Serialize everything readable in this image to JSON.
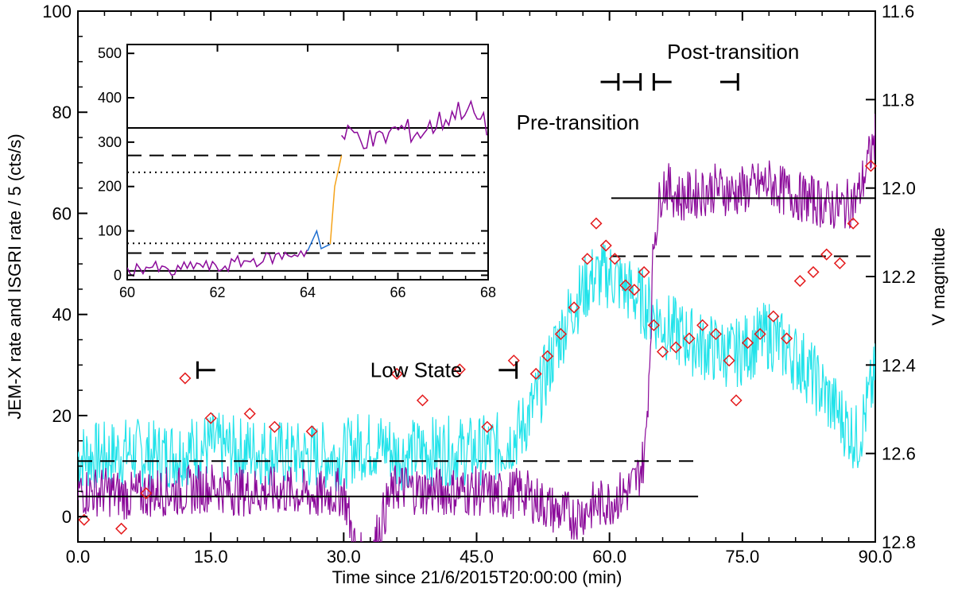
{
  "chart_data": {
    "type": "line",
    "xlabel": "Time since 21/6/2015T20:00:00 (min)",
    "ylabel_left": "JEM-X rate and ISGRI rate / 5 (cts/s)",
    "ylabel_right": "V magnitude",
    "xlim": [
      0,
      90
    ],
    "ylim_left": [
      -5,
      100
    ],
    "ylim_right": [
      12.8,
      11.6
    ],
    "x_ticks": [
      "0.0",
      "15.0",
      "30.0",
      "45.0",
      "60.0",
      "75.0",
      "90.0"
    ],
    "y_ticks_left": [
      "0",
      "20",
      "40",
      "60",
      "80",
      "100"
    ],
    "y_ticks_right": [
      "11.6",
      "11.8",
      "12.0",
      "12.2",
      "12.4",
      "12.6",
      "12.8"
    ],
    "colors": {
      "jemx": "#22e3ea",
      "isgri": "#8b0a9a",
      "optical": "#e41a1c",
      "transition_early": "#1f6fd0",
      "transition_late": "#f5a31a",
      "reference": "#000000"
    },
    "series": [
      {
        "key": "jemx",
        "x": [
          0,
          3,
          6,
          9,
          12,
          15,
          18,
          21,
          24,
          27,
          30,
          31.5,
          33,
          35,
          36,
          39,
          42,
          45,
          48,
          50,
          52,
          54,
          56,
          58,
          60,
          62,
          64,
          66,
          68,
          70,
          72,
          74,
          76,
          78,
          80,
          82,
          84,
          86,
          88,
          90
        ],
        "y": [
          12,
          12,
          13,
          12,
          13,
          14,
          13,
          13,
          12,
          12,
          12,
          14,
          14,
          14,
          12,
          13,
          13,
          13,
          14,
          17,
          24,
          34,
          42,
          47,
          48,
          45,
          42,
          38,
          36,
          34,
          33,
          32,
          34,
          36,
          33,
          30,
          25,
          20,
          15,
          28
        ]
      },
      {
        "key": "isgri",
        "x": [
          0,
          3,
          6,
          9,
          12,
          15,
          18,
          21,
          24,
          27,
          30,
          31.5,
          33,
          35,
          36,
          39,
          42,
          45,
          48,
          50,
          52,
          54,
          56,
          58,
          60,
          62,
          63,
          64,
          64.5,
          65,
          66,
          68,
          70,
          72,
          74,
          76,
          78,
          80,
          82,
          84,
          86,
          88,
          90
        ],
        "y": [
          5,
          5,
          4,
          5,
          5,
          6,
          5,
          5,
          5,
          4,
          5,
          -8,
          -8,
          3,
          6,
          5,
          5,
          5,
          4,
          5,
          3,
          1,
          0,
          2,
          3,
          5,
          7,
          12,
          30,
          55,
          66,
          63,
          64,
          65,
          64,
          65,
          66,
          64,
          63,
          62,
          61,
          63,
          75
        ]
      },
      {
        "key": "optical",
        "x": [
          0.7,
          4.9,
          7.7,
          12.1,
          15.0,
          19.4,
          22.2,
          26.4,
          36.0,
          38.9,
          43.1,
          46.2,
          49.2,
          51.7,
          53.0,
          54.5,
          56.0,
          57.5,
          58.5,
          59.6,
          60.6,
          61.8,
          62.8,
          63.9,
          65.0,
          66.0,
          67.5,
          69.0,
          70.5,
          72.0,
          73.5,
          74.3,
          75.6,
          77.0,
          78.5,
          80.0,
          81.5,
          83.0,
          84.5,
          86.0,
          87.5,
          89.5
        ],
        "y": [
          12.75,
          12.77,
          12.69,
          12.43,
          12.52,
          12.51,
          12.54,
          12.55,
          12.42,
          12.48,
          12.41,
          12.54,
          12.39,
          12.42,
          12.38,
          12.33,
          12.27,
          12.16,
          12.08,
          12.13,
          12.16,
          12.22,
          12.23,
          12.19,
          12.31,
          12.37,
          12.36,
          12.34,
          12.31,
          12.33,
          12.39,
          12.48,
          12.35,
          12.33,
          12.29,
          12.34,
          12.21,
          12.19,
          12.15,
          12.17,
          12.08,
          11.95
        ]
      }
    ],
    "reference_lines": [
      {
        "style": "solid",
        "x": [
          0,
          70
        ],
        "y": 4
      },
      {
        "style": "dashed",
        "x": [
          0,
          70
        ],
        "y": 11
      },
      {
        "style": "solid",
        "x": [
          60.2,
          90
        ],
        "y": 63
      },
      {
        "style": "dashed",
        "x": [
          60.2,
          90
        ],
        "y": 51.5
      }
    ],
    "interval_markers": [
      {
        "x_start": 13.5,
        "x_end": 15.5,
        "y": 29,
        "side": "start"
      },
      {
        "x_start": 47.5,
        "x_end": 49.5,
        "y": 29,
        "side": "end"
      },
      {
        "x_start": 59.0,
        "x_end": 61.0,
        "y": 86,
        "side": "end"
      },
      {
        "x_start": 61.5,
        "x_end": 63.5,
        "y": 86,
        "side": "end"
      },
      {
        "x_start": 65.0,
        "x_end": 67.0,
        "y": 86,
        "side": "start"
      },
      {
        "x_start": 72.5,
        "x_end": 74.5,
        "y": 86,
        "side": "end"
      }
    ],
    "annotations": [
      {
        "text": "Low State",
        "x": 33.0,
        "y": 29
      },
      {
        "text": "Pre-transition",
        "x": 49.5,
        "y": 78
      },
      {
        "text": "Post-transition",
        "x": 66.5,
        "y": 92
      }
    ],
    "inset": {
      "xlim": [
        60,
        68
      ],
      "ylim": [
        -10,
        520
      ],
      "x_ticks": [
        "60",
        "62",
        "64",
        "66",
        "68"
      ],
      "y_ticks": [
        "0",
        "100",
        "200",
        "300",
        "400",
        "500"
      ],
      "series": [
        {
          "key": "before",
          "x": [
            60,
            60.5,
            61,
            61.5,
            62,
            62.5,
            63,
            63.5,
            64
          ],
          "y": [
            10,
            20,
            5,
            25,
            15,
            30,
            35,
            45,
            55
          ]
        },
        {
          "key": "transition_early",
          "x": [
            64,
            64.2,
            64.3,
            64.4,
            64.5
          ],
          "y": [
            55,
            100,
            60,
            65,
            70
          ]
        },
        {
          "key": "transition_late",
          "x": [
            64.5,
            64.6,
            64.75
          ],
          "y": [
            70,
            200,
            270
          ]
        },
        {
          "key": "after",
          "x": [
            64.75,
            65,
            65.5,
            66,
            66.5,
            67,
            67.5,
            68
          ],
          "y": [
            310,
            320,
            300,
            330,
            320,
            350,
            380,
            330
          ]
        }
      ],
      "reference_lines": [
        {
          "style": "solid",
          "y": 332
        },
        {
          "style": "dashed",
          "y": 270
        },
        {
          "style": "dotted",
          "y": 232
        },
        {
          "style": "dotted",
          "y": 72
        },
        {
          "style": "dashed",
          "y": 50
        },
        {
          "style": "solid",
          "y": 10
        }
      ]
    }
  }
}
